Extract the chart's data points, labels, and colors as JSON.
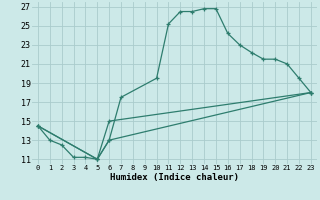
{
  "xlabel": "Humidex (Indice chaleur)",
  "bg_color": "#cce9e8",
  "grid_color": "#aacccc",
  "line_color": "#2e7d6e",
  "xlim": [
    -0.5,
    23.5
  ],
  "ylim": [
    10.5,
    27.5
  ],
  "xticks": [
    0,
    1,
    2,
    3,
    4,
    5,
    6,
    7,
    8,
    9,
    10,
    11,
    12,
    13,
    14,
    15,
    16,
    17,
    18,
    19,
    20,
    21,
    22,
    23
  ],
  "yticks": [
    11,
    13,
    15,
    17,
    19,
    21,
    23,
    25,
    27
  ],
  "series": [
    {
      "x": [
        0,
        1,
        2,
        3,
        4,
        5,
        6,
        7,
        10,
        11,
        12,
        13,
        14,
        15,
        16,
        17,
        18,
        19,
        20,
        21,
        22,
        23
      ],
      "y": [
        14.5,
        13,
        12.5,
        11.2,
        11.2,
        11,
        13,
        17.5,
        19.5,
        25.2,
        26.5,
        26.5,
        26.8,
        26.8,
        24.2,
        23,
        22.2,
        21.5,
        21.5,
        21,
        19.5,
        18
      ]
    },
    {
      "x": [
        0,
        5,
        6,
        23
      ],
      "y": [
        14.5,
        11,
        15,
        18
      ]
    },
    {
      "x": [
        0,
        5,
        6,
        23
      ],
      "y": [
        14.5,
        11,
        13,
        18
      ]
    }
  ]
}
